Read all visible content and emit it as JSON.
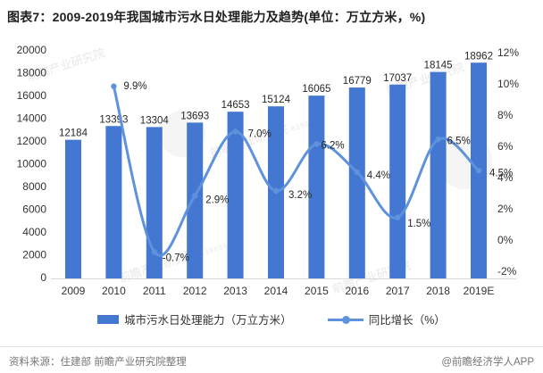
{
  "title": "图表7：2009-2019年我国城市污水日处理能力及趋势(单位：万立方米，%)",
  "chart_data": {
    "type": "combo",
    "categories": [
      "2009",
      "2010",
      "2011",
      "2012",
      "2013",
      "2014",
      "2015",
      "2016",
      "2017",
      "2018",
      "2019E"
    ],
    "series": [
      {
        "name": "城市污水日处理能力（万立方米）",
        "type": "bar",
        "axis": "left",
        "color": "#4377d2",
        "values": [
          12184,
          13393,
          13304,
          13693,
          14653,
          15124,
          16065,
          16779,
          17037,
          18145,
          18962
        ],
        "value_labels": [
          "12184",
          "13393",
          "13304",
          "13693",
          "14653",
          "15124",
          "16065",
          "16779",
          "17037",
          "18145",
          "18962"
        ]
      },
      {
        "name": "同比增长（%）",
        "type": "line",
        "axis": "right",
        "color": "#5e92dc",
        "values": [
          null,
          9.9,
          -0.7,
          2.9,
          7.0,
          3.2,
          6.2,
          4.4,
          1.5,
          6.5,
          4.5
        ],
        "value_labels": [
          null,
          "9.9%",
          "-0.7%",
          "2.9%",
          "7.0%",
          "3.2%",
          "6.2%",
          "4.4%",
          "1.5%",
          "6.5%",
          "4.5%"
        ]
      }
    ],
    "left_axis": {
      "min": 0,
      "max": 20000,
      "step": 2000
    },
    "right_axis": {
      "min": -2,
      "max": 12,
      "step": 2,
      "suffix": "%"
    },
    "grid": false,
    "legend_position": "bottom",
    "axis_line_color": "#d8d8d8"
  },
  "footer": {
    "source": "资料来源：住建部 前瞻产业研究院整理",
    "credit": "@前瞻经济学人APP"
  },
  "watermark": {
    "text": "前瞻产业研究院",
    "code": "839599"
  }
}
